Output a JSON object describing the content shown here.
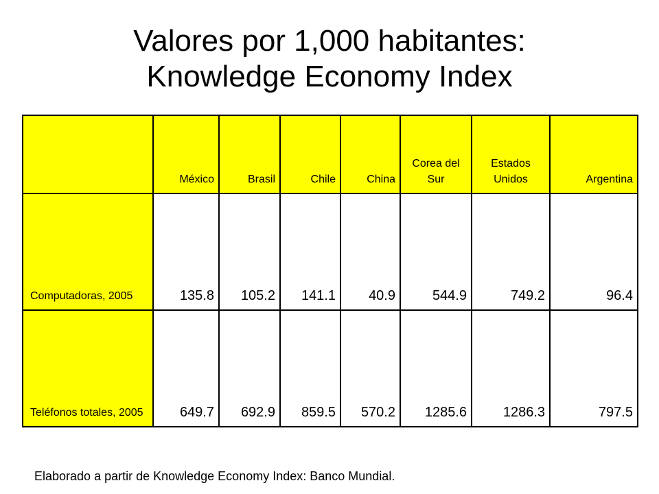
{
  "title": {
    "line1": "Valores por 1,000 habitantes:",
    "line2": "Knowledge Economy Index"
  },
  "colors": {
    "header_fill": "#ffff00",
    "cell_fill": "#ffffff",
    "border": "#000000"
  },
  "table": {
    "columns": [
      "México",
      "Brasil",
      "Chile",
      "China",
      "Corea del Sur",
      "Estados Unidos",
      "Argentina"
    ],
    "rows": [
      {
        "label": "Computadoras, 2005",
        "values": [
          "135.8",
          "105.2",
          "141.1",
          "40.9",
          "544.9",
          "749.2",
          "96.4"
        ]
      },
      {
        "label": "Teléfonos totales, 2005",
        "values": [
          "649.7",
          "692.9",
          "859.5",
          "570.2",
          "1285.6",
          "1286.3",
          "797.5"
        ]
      }
    ]
  },
  "footnote": "Elaborado a partir de Knowledge Economy Index: Banco Mundial."
}
